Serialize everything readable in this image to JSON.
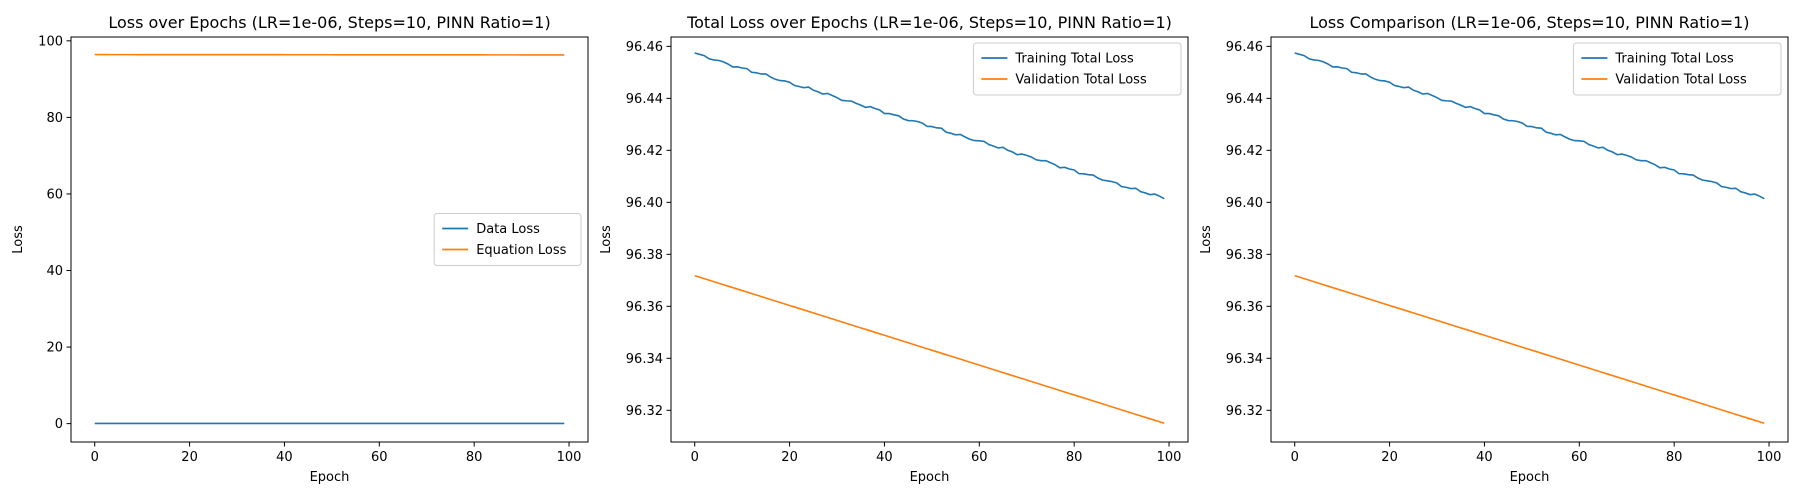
{
  "figure": {
    "background": "#ffffff"
  },
  "chart_data": [
    {
      "type": "line",
      "title": "Loss over Epochs (LR=1e-06, Steps=10, PINN Ratio=1)",
      "xlabel": "Epoch",
      "ylabel": "Loss",
      "xlim": [
        -5,
        104
      ],
      "ylim": [
        -4.8,
        101
      ],
      "xticks": [
        0,
        20,
        40,
        60,
        80,
        100
      ],
      "yticks": [
        0,
        20,
        40,
        60,
        80,
        100
      ],
      "xtick_labels": [
        "0",
        "20",
        "40",
        "60",
        "80",
        "100"
      ],
      "ytick_labels": [
        "0",
        "20",
        "40",
        "60",
        "80",
        "100"
      ],
      "grid": false,
      "legend_position": "center-right",
      "series": [
        {
          "name": "Data Loss",
          "color": "#1f77b4",
          "x_start": 0,
          "x_end": 99,
          "start": 0.05,
          "end": 0.05,
          "wiggle": 0
        },
        {
          "name": "Equation Loss",
          "color": "#ff7f0e",
          "x_start": 0,
          "x_end": 99,
          "start": 96.4,
          "end": 96.32,
          "wiggle": 0
        }
      ]
    },
    {
      "type": "line",
      "title": "Total Loss over Epochs (LR=1e-06, Steps=10, PINN Ratio=1)",
      "xlabel": "Epoch",
      "ylabel": "Loss",
      "xlim": [
        -5,
        104
      ],
      "ylim": [
        96.3078,
        96.4636
      ],
      "xticks": [
        0,
        20,
        40,
        60,
        80,
        100
      ],
      "yticks": [
        96.32,
        96.34,
        96.36,
        96.38,
        96.4,
        96.42,
        96.44,
        96.46
      ],
      "xtick_labels": [
        "0",
        "20",
        "40",
        "60",
        "80",
        "100"
      ],
      "ytick_labels": [
        "96.32",
        "96.34",
        "96.36",
        "96.38",
        "96.40",
        "96.42",
        "96.44",
        "96.46"
      ],
      "grid": false,
      "legend_position": "top-right",
      "series": [
        {
          "name": "Training Total Loss",
          "color": "#1f77b4",
          "x_start": 0,
          "x_end": 99,
          "start": 96.4572,
          "end": 96.4015,
          "wiggle": 0.0007
        },
        {
          "name": "Validation Total Loss",
          "color": "#ff7f0e",
          "x_start": 0,
          "x_end": 99,
          "start": 96.3718,
          "end": 96.315,
          "wiggle": 0
        }
      ]
    },
    {
      "type": "line",
      "title": "Loss Comparison (LR=1e-06, Steps=10, PINN Ratio=1)",
      "xlabel": "Epoch",
      "ylabel": "Loss",
      "xlim": [
        -5,
        104
      ],
      "ylim": [
        96.3078,
        96.4636
      ],
      "xticks": [
        0,
        20,
        40,
        60,
        80,
        100
      ],
      "yticks": [
        96.32,
        96.34,
        96.36,
        96.38,
        96.4,
        96.42,
        96.44,
        96.46
      ],
      "xtick_labels": [
        "0",
        "20",
        "40",
        "60",
        "80",
        "100"
      ],
      "ytick_labels": [
        "96.32",
        "96.34",
        "96.36",
        "96.38",
        "96.40",
        "96.42",
        "96.44",
        "96.46"
      ],
      "grid": false,
      "legend_position": "top-right",
      "series": [
        {
          "name": "Training Total Loss",
          "color": "#1f77b4",
          "x_start": 0,
          "x_end": 99,
          "start": 96.4572,
          "end": 96.4015,
          "wiggle": 0.0007
        },
        {
          "name": "Validation Total Loss",
          "color": "#ff7f0e",
          "x_start": 0,
          "x_end": 99,
          "start": 96.3718,
          "end": 96.315,
          "wiggle": 0
        }
      ]
    }
  ]
}
